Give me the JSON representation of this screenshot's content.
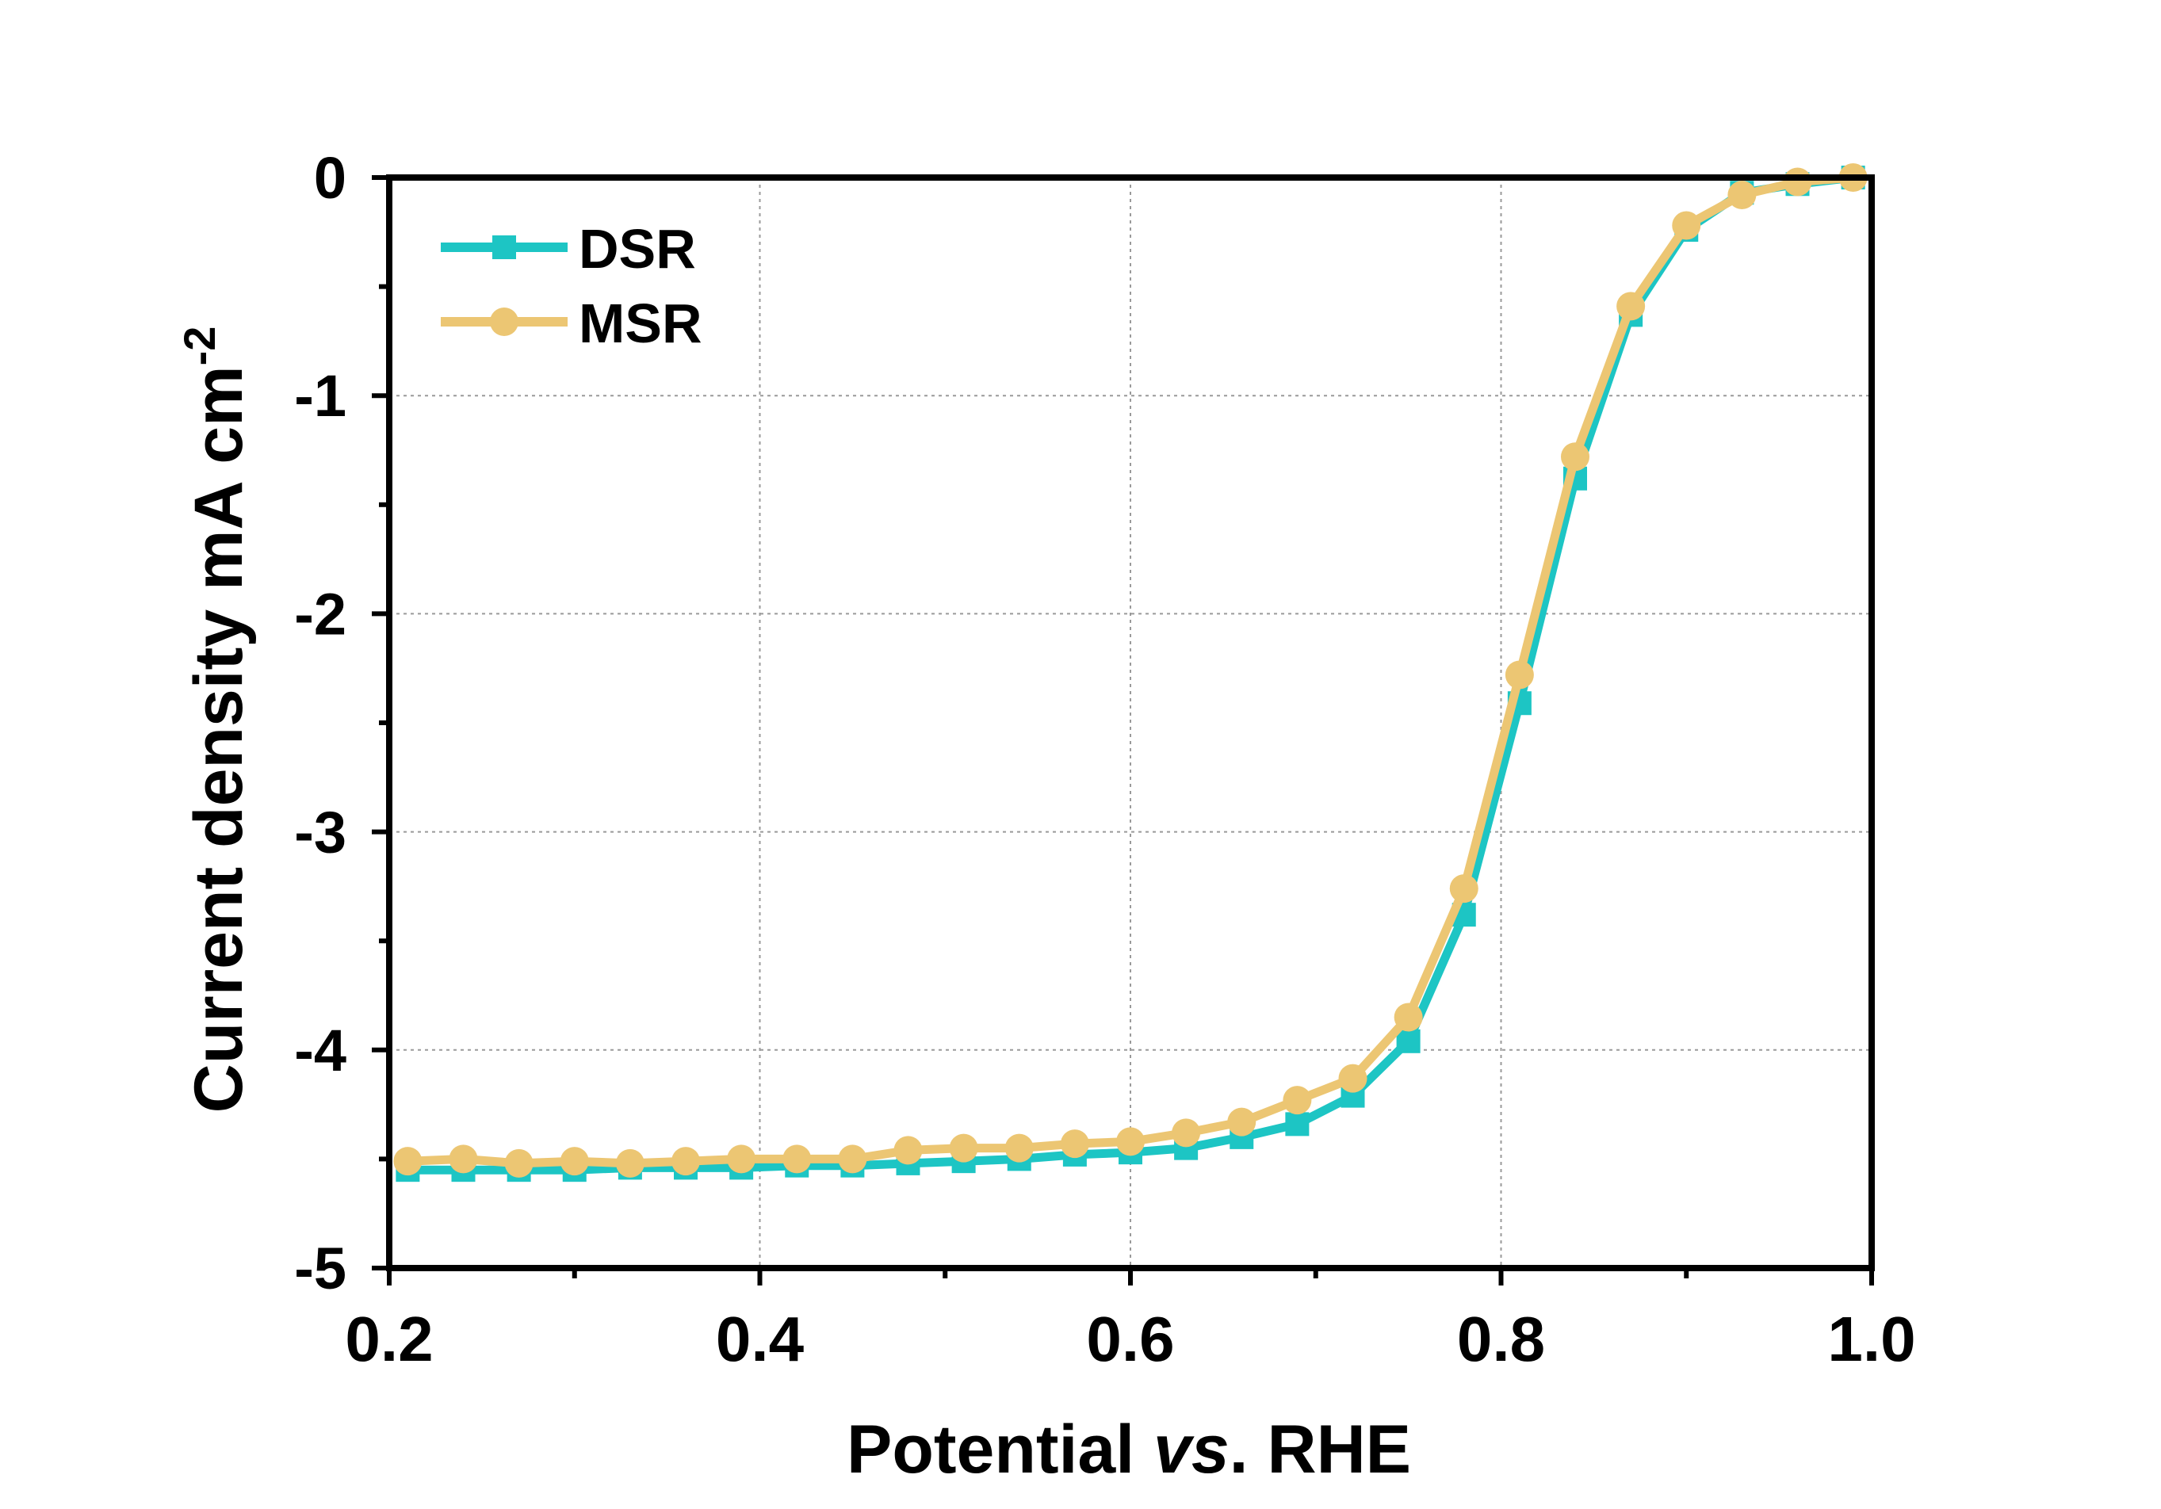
{
  "chart_data": {
    "type": "line",
    "title": "",
    "xlabel_parts": [
      "Potential ",
      "vs",
      ". RHE"
    ],
    "ylabel": "Current density mA cm",
    "ylabel_superscript": "-2",
    "xlim": [
      0.2,
      1.0
    ],
    "ylim": [
      -5,
      0
    ],
    "x_ticks": [
      0.2,
      0.4,
      0.6,
      0.8,
      1.0
    ],
    "x_tick_labels": [
      "0.2",
      "0.4",
      "0.6",
      "0.8",
      "1.0"
    ],
    "y_ticks": [
      0,
      -1,
      -2,
      -3,
      -4,
      -5
    ],
    "y_tick_labels": [
      "0",
      "-1",
      "-2",
      "-3",
      "-4",
      "-5"
    ],
    "grid": true,
    "legend_position": "top-left",
    "x": [
      0.21,
      0.24,
      0.27,
      0.3,
      0.33,
      0.36,
      0.39,
      0.42,
      0.45,
      0.48,
      0.51,
      0.54,
      0.57,
      0.6,
      0.63,
      0.66,
      0.69,
      0.72,
      0.75,
      0.78,
      0.81,
      0.84,
      0.87,
      0.9,
      0.93,
      0.96,
      0.99
    ],
    "series": [
      {
        "name": "DSR",
        "color": "#1dc5c4",
        "marker": "square",
        "values": [
          -4.55,
          -4.55,
          -4.55,
          -4.55,
          -4.54,
          -4.54,
          -4.54,
          -4.53,
          -4.53,
          -4.52,
          -4.51,
          -4.5,
          -4.48,
          -4.47,
          -4.45,
          -4.4,
          -4.34,
          -4.21,
          -3.96,
          -3.38,
          -2.41,
          -1.38,
          -0.63,
          -0.24,
          -0.07,
          -0.03,
          0.0
        ]
      },
      {
        "name": "MSR",
        "color": "#ecc673",
        "marker": "circle",
        "values": [
          -4.51,
          -4.5,
          -4.52,
          -4.51,
          -4.52,
          -4.51,
          -4.5,
          -4.5,
          -4.5,
          -4.46,
          -4.45,
          -4.45,
          -4.43,
          -4.42,
          -4.38,
          -4.33,
          -4.23,
          -4.13,
          -3.85,
          -3.26,
          -2.28,
          -1.28,
          -0.59,
          -0.22,
          -0.08,
          -0.02,
          0.0
        ]
      }
    ]
  }
}
